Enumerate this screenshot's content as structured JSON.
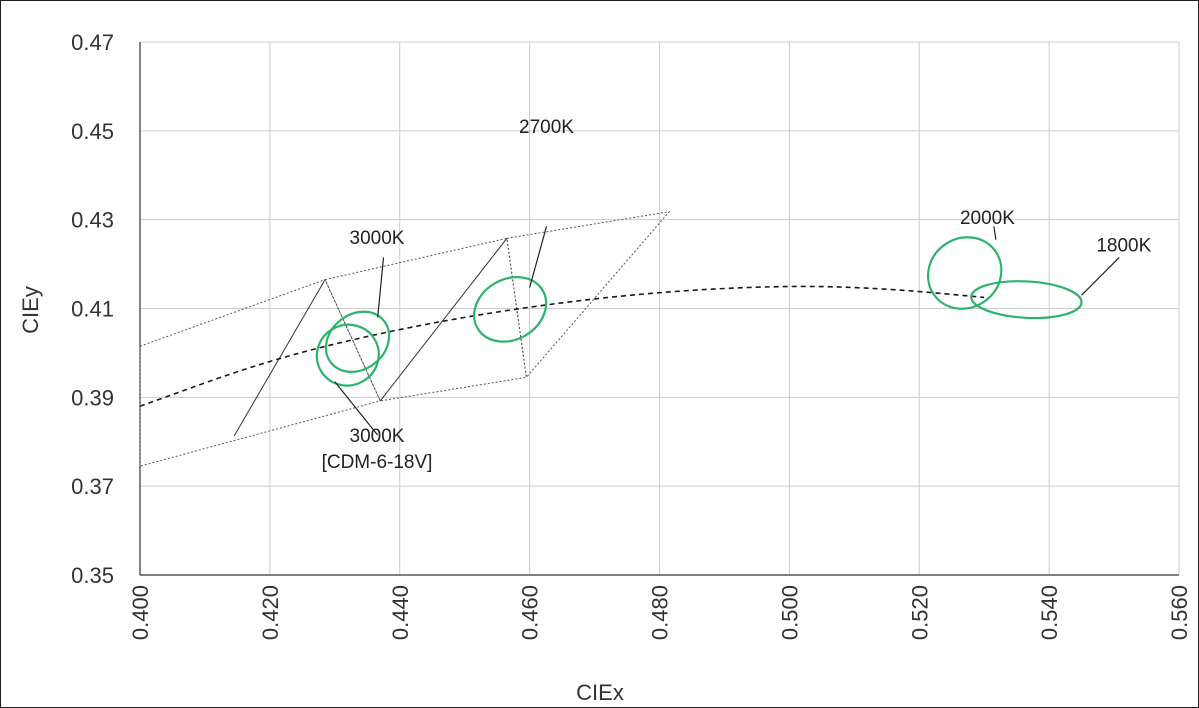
{
  "chart_data": {
    "type": "scatter",
    "xlabel": "CIEx",
    "ylabel": "CIEy",
    "xlim": [
      0.4,
      0.56
    ],
    "ylim": [
      0.35,
      0.47
    ],
    "grid": true,
    "x_ticks": [
      "0.400",
      "0.420",
      "0.440",
      "0.460",
      "0.480",
      "0.500",
      "0.520",
      "0.540",
      "0.560"
    ],
    "y_ticks": [
      "0.35",
      "0.37",
      "0.39",
      "0.41",
      "0.43",
      "0.45",
      "0.47"
    ],
    "planckian_locus": {
      "style": "dashed",
      "points": [
        [
          0.4,
          0.388
        ],
        [
          0.42,
          0.3985
        ],
        [
          0.44,
          0.4055
        ],
        [
          0.46,
          0.4105
        ],
        [
          0.48,
          0.4138
        ],
        [
          0.5,
          0.4152
        ],
        [
          0.515,
          0.4145
        ],
        [
          0.53,
          0.4125
        ]
      ]
    },
    "bins": {
      "style": "dotted",
      "color": "#555555",
      "polygons": [
        [
          [
            0.4,
            0.4015
          ],
          [
            0.4285,
            0.4165
          ],
          [
            0.437,
            0.3892
          ],
          [
            0.4,
            0.3745
          ]
        ],
        [
          [
            0.4285,
            0.4165
          ],
          [
            0.4565,
            0.4258
          ],
          [
            0.4595,
            0.3945
          ],
          [
            0.437,
            0.3892
          ]
        ],
        [
          [
            0.4565,
            0.4258
          ],
          [
            0.4815,
            0.4318
          ],
          [
            0.4595,
            0.3945
          ]
        ]
      ]
    },
    "isotherms": [
      [
        [
          0.4285,
          0.4165
        ],
        [
          0.4145,
          0.3813
        ]
      ],
      [
        [
          0.4565,
          0.4258
        ],
        [
          0.437,
          0.3892
        ]
      ]
    ],
    "ellipses": [
      {
        "label": "3000K",
        "cx": 0.4335,
        "cy": 0.4025,
        "rx": 0.0052,
        "ry": 0.0062,
        "angle": 38,
        "color": "#2db36b"
      },
      {
        "label": "3000K [CDM-6-18V]",
        "cx": 0.432,
        "cy": 0.3995,
        "rx": 0.0048,
        "ry": 0.0068,
        "angle": 28,
        "color": "#2db36b"
      },
      {
        "label": "2700K",
        "cx": 0.457,
        "cy": 0.4098,
        "rx": 0.0058,
        "ry": 0.0068,
        "angle": 30,
        "color": "#2db36b"
      },
      {
        "label": "2000K",
        "cx": 0.527,
        "cy": 0.418,
        "rx": 0.0058,
        "ry": 0.0078,
        "angle": 36,
        "color": "#2db36b"
      },
      {
        "label": "1800K",
        "cx": 0.5365,
        "cy": 0.412,
        "rx": 0.0085,
        "ry": 0.0041,
        "angle": -3,
        "color": "#2db36b"
      }
    ],
    "annotations": [
      {
        "lines": [
          "3000K"
        ],
        "text_x": 0.4365,
        "text_y": 0.4245,
        "anchor": "middle",
        "leader": [
          [
            0.4375,
            0.4215
          ],
          [
            0.4366,
            0.408
          ]
        ]
      },
      {
        "lines": [
          "2700K"
        ],
        "text_x": 0.4626,
        "text_y": 0.4495,
        "anchor": "middle",
        "leader": [
          [
            0.4626,
            0.4285
          ],
          [
            0.46,
            0.4147
          ]
        ]
      },
      {
        "lines": [
          "2000K"
        ],
        "text_x": 0.5305,
        "text_y": 0.429,
        "anchor": "middle",
        "leader": [
          [
            0.5315,
            0.4285
          ],
          [
            0.5318,
            0.4255
          ]
        ]
      },
      {
        "lines": [
          "1800K"
        ],
        "text_x": 0.5515,
        "text_y": 0.4228,
        "anchor": "middle",
        "leader": [
          [
            0.5508,
            0.4215
          ],
          [
            0.545,
            0.413
          ]
        ]
      },
      {
        "lines": [
          "3000K",
          "[CDM-6-18V]"
        ],
        "text_x": 0.4365,
        "text_y": 0.38,
        "anchor": "middle",
        "leader": [
          [
            0.4366,
            0.3815
          ],
          [
            0.43,
            0.3935
          ]
        ]
      }
    ],
    "colors": {
      "ellipse": "#2db36b",
      "grid": "#cccccc",
      "locus": "#1a1a1a",
      "bins": "#555555",
      "axis": "#333333"
    }
  }
}
